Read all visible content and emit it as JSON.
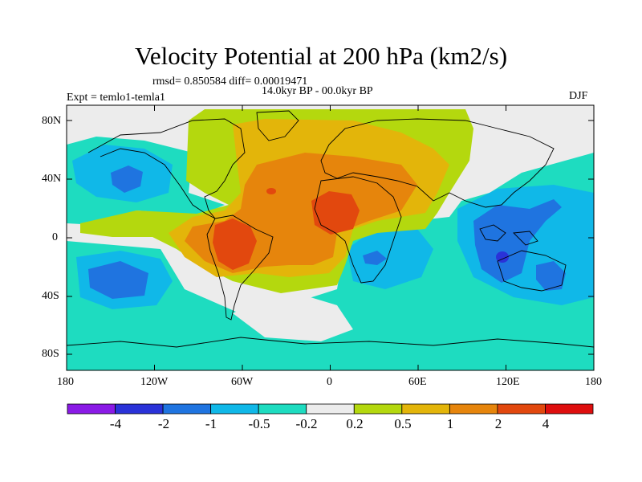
{
  "title": "Velocity Potential at 200 hPa (km2/s)",
  "stats": "rmsd= 0.850584 diff= 0.00019471",
  "experiment": "Expt = temlo1-temla1",
  "period": "14.0kyr BP - 00.0kyr BP",
  "season": "DJF",
  "y_ticks": [
    "80N",
    "40N",
    "0",
    "40S",
    "80S"
  ],
  "x_ticks": [
    "180",
    "120W",
    "60W",
    "0",
    "60E",
    "120E",
    "180"
  ],
  "colorbar": {
    "labels": [
      "-4",
      "-2",
      "-1",
      "-0.5",
      "-0.2",
      "0.2",
      "0.5",
      "1",
      "2",
      "4"
    ],
    "colors": [
      "#8a1ae6",
      "#2a32d8",
      "#1f74e0",
      "#10b8e8",
      "#1edcc0",
      "#ececec",
      "#b4d80e",
      "#e3b50a",
      "#e6850c",
      "#e2480e",
      "#de0e0e"
    ]
  },
  "colors": {
    "neutral": "#ececec",
    "pos_weak": "#b4d80e",
    "pos_mid": "#e3b50a",
    "pos_strong": "#e6850c",
    "pos_max": "#e2480e",
    "neg_weak": "#1edcc0",
    "neg_mid": "#10b8e8",
    "neg_strong": "#1f74e0",
    "neg_max": "#2a32d8"
  }
}
